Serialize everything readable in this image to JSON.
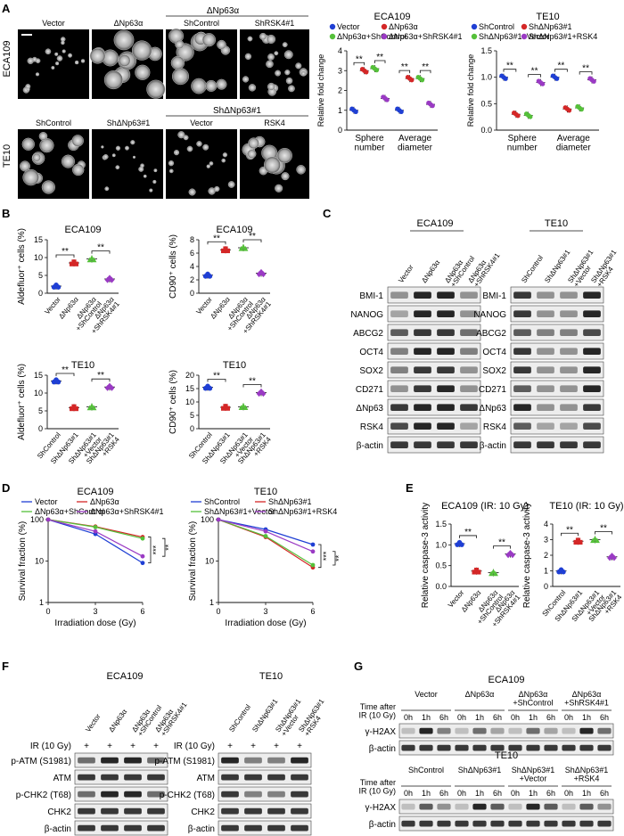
{
  "panels": {
    "A": "A",
    "B": "B",
    "C": "C",
    "D": "D",
    "E": "E",
    "F": "F",
    "G": "G"
  },
  "panel_a": {
    "row_labels": [
      "ECA109",
      "TE10"
    ],
    "row1": {
      "group_label": "ΔNp63α",
      "image_labels": [
        "Vector",
        "ΔNp63α",
        "ShControl",
        "ShRSK4#1"
      ]
    },
    "row2": {
      "group_label": "ShΔNp63#1",
      "image_labels": [
        "ShControl",
        "ShΔNp63#1",
        "Vector",
        "RSK4"
      ]
    }
  },
  "colors": {
    "blue": "#1f3fd4",
    "red": "#d42727",
    "green": "#55c03a",
    "purple": "#9a3ac4"
  },
  "sig": "**",
  "chart_data": [
    {
      "id": "A-ECA109",
      "type": "scatter",
      "title": "ECA109",
      "ylabel": "Relative fold change",
      "ylim": [
        0,
        4
      ],
      "yticks": [
        0,
        1,
        2,
        3,
        4
      ],
      "categories": [
        "Sphere\nnumber",
        "Average\ndiameter"
      ],
      "legend": [
        "Vector",
        "ΔNp63α",
        "ΔNp63α+ShControl",
        "ΔNp63α+ShRSK4#1"
      ],
      "series": [
        {
          "name": "Vector",
          "values": [
            1.0,
            1.0
          ]
        },
        {
          "name": "ΔNp63α",
          "values": [
            3.0,
            2.6
          ]
        },
        {
          "name": "ΔNp63α+ShControl",
          "values": [
            3.1,
            2.6
          ]
        },
        {
          "name": "ΔNp63α+ShRSK4#1",
          "values": [
            1.6,
            1.3
          ]
        }
      ]
    },
    {
      "id": "A-TE10",
      "type": "scatter",
      "title": "TE10",
      "ylabel": "Relative fold change",
      "ylim": [
        0,
        1.5
      ],
      "yticks": [
        0.0,
        0.5,
        1.0,
        1.5
      ],
      "categories": [
        "Sphere\nnumber",
        "Average\ndiameter"
      ],
      "legend": [
        "ShControl",
        "ShΔNp63#1",
        "ShΔNp63#1+Vector",
        "ShΔNp63#1+RSK4"
      ],
      "series": [
        {
          "name": "ShControl",
          "values": [
            1.0,
            1.0
          ]
        },
        {
          "name": "ShΔNp63#1",
          "values": [
            0.3,
            0.4
          ]
        },
        {
          "name": "ShΔNp63#1+Vector",
          "values": [
            0.28,
            0.42
          ]
        },
        {
          "name": "ShΔNp63#1+RSK4",
          "values": [
            0.9,
            0.95
          ]
        }
      ]
    },
    {
      "id": "B-1",
      "type": "scatter",
      "title": "ECA109",
      "ylabel": "Aldefluor⁺ cells (%)",
      "ylim": [
        0,
        15
      ],
      "yticks": [
        0,
        5,
        10,
        15
      ],
      "categories": [
        "Vector",
        "ΔNp63α",
        "ΔNp63α\n+ShControl",
        "ΔNp63α\n+ShRSK4#1"
      ],
      "values": [
        2.0,
        8.5,
        9.6,
        4.0
      ]
    },
    {
      "id": "B-2",
      "type": "scatter",
      "title": "ECA109",
      "ylabel": "CD90⁺ cells (%)",
      "ylim": [
        0,
        8
      ],
      "yticks": [
        0,
        2,
        4,
        6,
        8
      ],
      "categories": [
        "Vector",
        "ΔNp63α",
        "ΔNp63α\n+ShControl",
        "ΔNp63α\n+ShRSK4#1"
      ],
      "values": [
        2.7,
        6.5,
        6.8,
        3.0
      ]
    },
    {
      "id": "B-3",
      "type": "scatter",
      "title": "TE10",
      "ylabel": "Aldefluor⁺ cells (%)",
      "ylim": [
        0,
        15
      ],
      "yticks": [
        0,
        5,
        10,
        15
      ],
      "categories": [
        "ShControl",
        "ShΔNp63#1",
        "ShΔNp63#1\n+Vector",
        "ShΔNp63#1\n+RSK4"
      ],
      "values": [
        13.4,
        5.9,
        6.1,
        11.7
      ]
    },
    {
      "id": "B-4",
      "type": "scatter",
      "title": "TE10",
      "ylabel": "CD90⁺ cells (%)",
      "ylim": [
        0,
        20
      ],
      "yticks": [
        0,
        5,
        10,
        15,
        20
      ],
      "categories": [
        "ShControl",
        "ShΔNp63#1",
        "ShΔNp63#1\n+Vector",
        "ShΔNp63#1\n+RSK4"
      ],
      "values": [
        15.5,
        8.0,
        8.2,
        13.5
      ]
    },
    {
      "id": "D-ECA109",
      "type": "line",
      "title": "ECA109",
      "xlabel": "Irradiation dose (Gy)",
      "ylabel": "Survival fraction (%)",
      "yscale": "log",
      "ylim": [
        1,
        100
      ],
      "yticks": [
        1,
        10,
        100
      ],
      "x": [
        0,
        3,
        6
      ],
      "legend": [
        "Vector",
        "ΔNp63α",
        "ΔNp63α+ShControl",
        "ΔNp63α+ShRSK4#1"
      ],
      "series": [
        {
          "name": "Vector",
          "values": [
            100,
            45,
            9
          ]
        },
        {
          "name": "ΔNp63α",
          "values": [
            100,
            68,
            38
          ]
        },
        {
          "name": "ΔNp63α+ShControl",
          "values": [
            100,
            66,
            35
          ]
        },
        {
          "name": "ΔNp63α+ShRSK4#1",
          "values": [
            100,
            52,
            13
          ]
        }
      ],
      "annotations": [
        "***",
        "**"
      ]
    },
    {
      "id": "D-TE10",
      "type": "line",
      "title": "TE10",
      "xlabel": "Irradiation dose (Gy)",
      "ylabel": "Survival fraction (%)",
      "yscale": "log",
      "ylim": [
        1,
        100
      ],
      "yticks": [
        1,
        10,
        100
      ],
      "x": [
        0,
        3,
        6
      ],
      "legend": [
        "ShControl",
        "ShΔNp63#1",
        "ShΔNp63#1+Vector",
        "ShΔNp63#1+RSK4"
      ],
      "series": [
        {
          "name": "ShControl",
          "values": [
            100,
            58,
            25
          ]
        },
        {
          "name": "ShΔNp63#1",
          "values": [
            100,
            38,
            7
          ]
        },
        {
          "name": "ShΔNp63#1+Vector",
          "values": [
            100,
            40,
            8
          ]
        },
        {
          "name": "ShΔNp63#1+RSK4",
          "values": [
            100,
            52,
            17
          ]
        }
      ],
      "annotations": [
        "***",
        "**"
      ]
    },
    {
      "id": "E-1",
      "type": "scatter",
      "title": "ECA109 (IR: 10 Gy)",
      "ylabel": "Relative caspase-3 activity",
      "ylim": [
        0,
        1.5
      ],
      "yticks": [
        0.0,
        0.5,
        1.0,
        1.5
      ],
      "categories": [
        "Vector",
        "ΔNp63α",
        "ΔNp63α\n+ShControl",
        "ΔNp63α\n+ShRSK4#1"
      ],
      "values": [
        1.03,
        0.37,
        0.33,
        0.78
      ]
    },
    {
      "id": "E-2",
      "type": "scatter",
      "title": "TE10 (IR: 10 Gy)",
      "ylabel": "Relative caspase-3 activity",
      "ylim": [
        0,
        4
      ],
      "yticks": [
        0,
        1,
        2,
        3,
        4
      ],
      "categories": [
        "ShControl",
        "ShΔNp63#1",
        "ShΔNp63#1\n+Vector",
        "ShΔNp63#1\n+RSK4"
      ],
      "values": [
        1.0,
        2.9,
        3.0,
        1.9
      ]
    }
  ],
  "panel_c": {
    "titles": [
      "ECA109",
      "TE10"
    ],
    "cols_left": [
      "Vector",
      "ΔNp63α",
      "ΔNp63α\n+ShControl",
      "ΔNp63α\n+ShRSK4#1"
    ],
    "cols_right": [
      "ShControl",
      "ShΔNp63#1",
      "ShΔNp63#1\n+Vector",
      "ShΔNp63#1\n+RSK4"
    ],
    "rows": [
      "BMI-1",
      "NANOG",
      "ABCG2",
      "OCT4",
      "SOX2",
      "CD271",
      "ΔNp63",
      "RSK4",
      "β-actin"
    ]
  },
  "panel_f": {
    "titles": [
      "ECA109",
      "TE10"
    ],
    "cols_left": [
      "Vector",
      "ΔNp63α",
      "ΔNp63α\n+ShControl",
      "ΔNp63α\n+ShRSK4#1"
    ],
    "cols_right": [
      "ShControl",
      "ShΔNp63#1",
      "ShΔNp63#1\n+Vector",
      "ShΔNp63#1\n+RSK4"
    ],
    "ir_label": "IR (10 Gy)",
    "ir_values": [
      "+",
      "+",
      "+",
      "+"
    ],
    "rows": [
      "p-ATM (S1981)",
      "ATM",
      "p-CHK2 (T68)",
      "CHK2",
      "β-actin"
    ]
  },
  "panel_g": {
    "time_label": "Time after\nIR (10 Gy)",
    "times": [
      "0h",
      "1h",
      "6h"
    ],
    "blocks": [
      {
        "title": "ECA109",
        "groups": [
          "Vector",
          "ΔNp63α",
          "ΔNp63α\n+ShControl",
          "ΔNp63α\n+ShRSK4#1"
        ],
        "rows": [
          "γ-H2AX",
          "β-actin"
        ]
      },
      {
        "title": "TE10",
        "groups": [
          "ShControl",
          "ShΔNp63#1",
          "ShΔNp63#1\n+Vector",
          "ShΔNp63#1\n+RSK4"
        ],
        "rows": [
          "γ-H2AX",
          "β-actin"
        ]
      }
    ]
  }
}
